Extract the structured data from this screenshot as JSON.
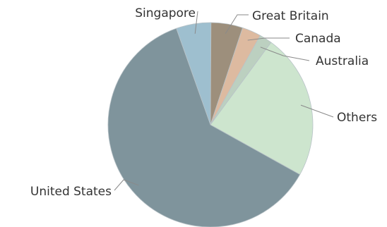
{
  "chart_data": {
    "type": "pie",
    "series": [
      {
        "name": "",
        "values": [
          {
            "label": "United States",
            "value": 61.5,
            "color": "#7f949c"
          },
          {
            "label": "Singapore",
            "value": 5.5,
            "color": "#9ebfcf"
          },
          {
            "label": "Great Britain",
            "value": 5.0,
            "color": "#9d8f7c"
          },
          {
            "label": "Canada",
            "value": 3.0,
            "color": "#ddbaa0"
          },
          {
            "label": "Australia",
            "value": 2.0,
            "color": "#bcd0c0"
          },
          {
            "label": "Others",
            "value": 23.0,
            "color": "#cde5ce"
          }
        ]
      }
    ],
    "title": "",
    "legend": "none",
    "labels": "outside-with-leader-lines"
  }
}
